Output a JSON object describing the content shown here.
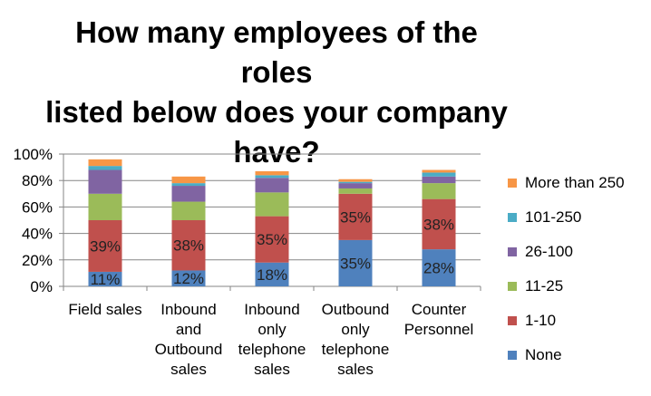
{
  "chart_data": {
    "type": "bar",
    "stacked": true,
    "title_lines": [
      "How many employees of the roles",
      "listed below does your company",
      "have?"
    ],
    "categories": [
      "Field sales",
      "Inbound and Outbound sales",
      "Inbound only telephone sales",
      "Outbound only telephone sales",
      "Counter Personnel"
    ],
    "category_lines": [
      [
        "Field sales"
      ],
      [
        "Inbound",
        "and",
        "Outbound",
        "sales"
      ],
      [
        "Inbound",
        "only",
        "telephone",
        "sales"
      ],
      [
        "Outbound",
        "only",
        "telephone",
        "sales"
      ],
      [
        "Counter",
        "Personnel"
      ]
    ],
    "ylim": [
      0,
      100
    ],
    "yticks": [
      "0%",
      "20%",
      "40%",
      "60%",
      "80%",
      "100%"
    ],
    "grid": true,
    "legend_position": "right",
    "series": [
      {
        "name": "None",
        "color": "#4f81bd",
        "values": [
          11,
          12,
          18,
          35,
          28
        ],
        "labels": [
          "11%",
          "12%",
          "18%",
          "35%",
          "28%"
        ]
      },
      {
        "name": "1-10",
        "color": "#c0504d",
        "values": [
          39,
          38,
          35,
          35,
          38
        ],
        "labels": [
          "39%",
          "38%",
          "35%",
          "35%",
          "38%"
        ]
      },
      {
        "name": "11-25",
        "color": "#9bbb59",
        "values": [
          20,
          14,
          18,
          4,
          12
        ],
        "labels": []
      },
      {
        "name": "26-100",
        "color": "#8064a2",
        "values": [
          18,
          12,
          11,
          4,
          5
        ],
        "labels": []
      },
      {
        "name": "101-250",
        "color": "#4bacc6",
        "values": [
          3,
          2,
          2,
          1,
          3
        ],
        "labels": []
      },
      {
        "name": "More than 250",
        "color": "#f79646",
        "values": [
          5,
          5,
          3,
          2,
          2
        ],
        "labels": []
      }
    ],
    "legend_order": [
      "More than 250",
      "101-250",
      "26-100",
      "11-25",
      "1-10",
      "None"
    ]
  }
}
